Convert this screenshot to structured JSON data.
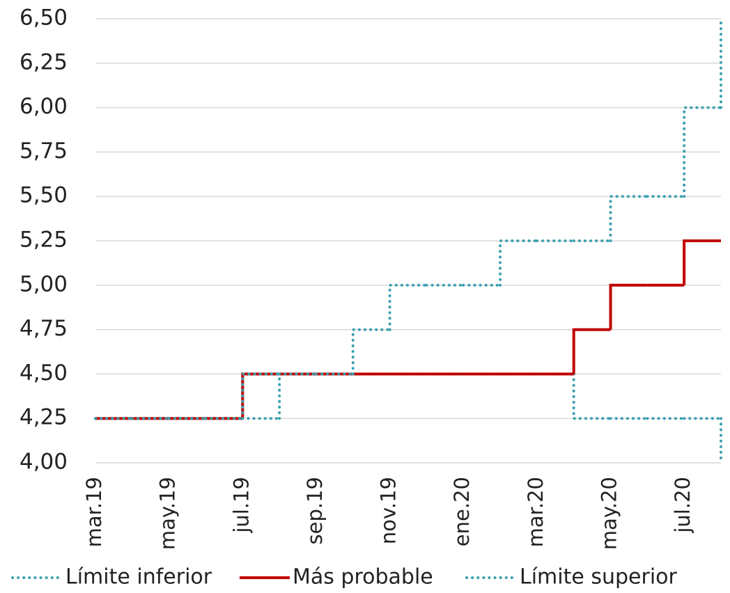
{
  "chart_data": {
    "type": "line",
    "step": "after",
    "categories": [
      "mar.19",
      null,
      "may.19",
      null,
      "jul.19",
      null,
      "sep.19",
      null,
      "nov.19",
      null,
      "ene.20",
      null,
      "mar.20",
      null,
      "may.20",
      null,
      "jul.20",
      null
    ],
    "series": [
      {
        "name": "Límite inferior",
        "color": "#3a9fb0",
        "dash": "dotted",
        "values": [
          4.25,
          4.25,
          4.25,
          4.25,
          4.25,
          4.5,
          4.5,
          4.5,
          4.5,
          4.5,
          4.5,
          4.5,
          4.5,
          4.25,
          4.25,
          4.25,
          4.25,
          4.0
        ]
      },
      {
        "name": "Más probable",
        "color": "#c00000",
        "dash": "solid",
        "values": [
          4.25,
          4.25,
          4.25,
          4.25,
          4.5,
          4.5,
          4.5,
          4.5,
          4.5,
          4.5,
          4.5,
          4.5,
          4.5,
          4.75,
          5.0,
          5.0,
          5.25,
          5.25
        ]
      },
      {
        "name": "Límite superior",
        "color": "#3a9fb0",
        "dash": "dotted",
        "values": [
          4.25,
          4.25,
          4.25,
          4.25,
          4.5,
          4.5,
          4.5,
          4.75,
          5.0,
          5.0,
          5.0,
          5.25,
          5.25,
          5.25,
          5.5,
          5.5,
          6.0,
          6.5
        ]
      }
    ],
    "ylim": [
      4.0,
      6.5
    ],
    "yticks": [
      {
        "value": 4.0,
        "label": "4,00"
      },
      {
        "value": 4.25,
        "label": "4,25"
      },
      {
        "value": 4.5,
        "label": "4,50"
      },
      {
        "value": 4.75,
        "label": "4,75"
      },
      {
        "value": 5.0,
        "label": "5,00"
      },
      {
        "value": 5.25,
        "label": "5,25"
      },
      {
        "value": 5.5,
        "label": "5,50"
      },
      {
        "value": 5.75,
        "label": "5,75"
      },
      {
        "value": 6.0,
        "label": "6,00"
      },
      {
        "value": 6.25,
        "label": "6,25"
      },
      {
        "value": 6.5,
        "label": "6,50"
      }
    ],
    "grid": true,
    "legend": "bottom"
  }
}
